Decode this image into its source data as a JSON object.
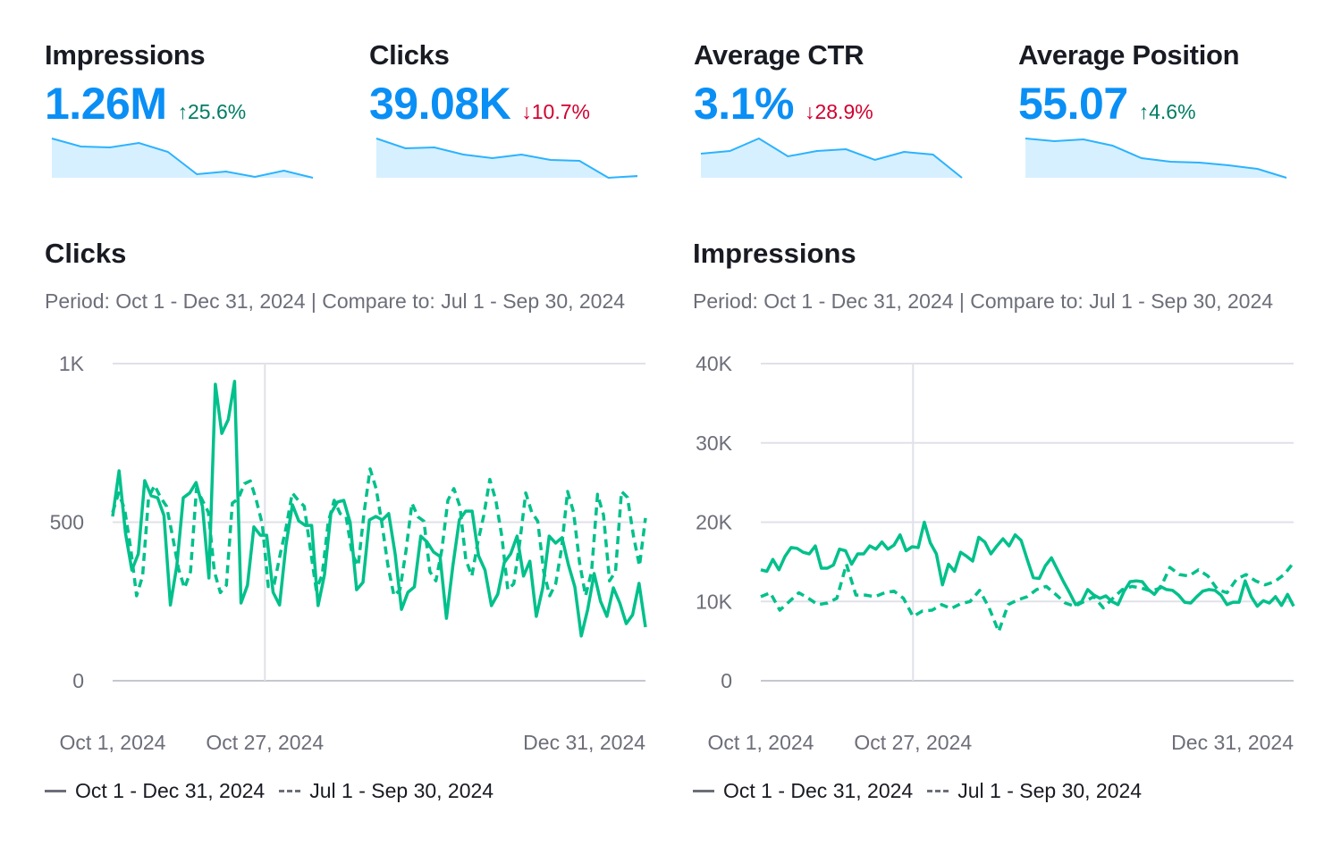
{
  "kpis": [
    {
      "title": "Impressions",
      "value": "1.26M",
      "delta": "25.6%",
      "direction": "up",
      "arrow": "↑",
      "spark": [
        44,
        35,
        34,
        39,
        29,
        4,
        7,
        1,
        8,
        0
      ]
    },
    {
      "title": "Clicks",
      "value": "39.08K",
      "delta": "10.7%",
      "direction": "down",
      "arrow": "↓",
      "spark": [
        44,
        33,
        34,
        26,
        22,
        26,
        20,
        19,
        0,
        2
      ]
    },
    {
      "title": "Average CTR",
      "value": "3.1%",
      "delta": "28.9%",
      "direction": "down",
      "arrow": "↓",
      "spark": [
        27,
        30,
        44,
        24,
        30,
        32,
        20,
        29,
        26,
        0
      ]
    },
    {
      "title": "Average Position",
      "value": "55.07",
      "delta": "4.6%",
      "direction": "up",
      "arrow": "↑",
      "spark": [
        44,
        41,
        43,
        36,
        22,
        18,
        17,
        14,
        10,
        0
      ]
    }
  ],
  "colors": {
    "accent": "#0a8ff5",
    "up": "#007c65",
    "down": "#d1002f",
    "series": "#00c08b",
    "spark_line": "#2bb3ff",
    "spark_fill": "#d7f0ff"
  },
  "chart_data": [
    {
      "type": "line",
      "title": "Clicks",
      "subtitle": "Period: Oct 1 - Dec 31, 2024 | Compare to: Jul 1 - Sep 30, 2024",
      "yticks": [
        "0",
        "500",
        "1K"
      ],
      "ylim": [
        0,
        1000
      ],
      "xticks": [
        "Oct 1, 2024",
        "Oct 27, 2024",
        "Dec 31, 2024"
      ],
      "grid": true,
      "legend": "bottom-left",
      "series": [
        {
          "name": "Oct 1 - Dec 31, 2024",
          "style": "solid",
          "values": [
            518,
            662,
            465,
            349,
            400,
            631,
            583,
            577,
            521,
            239,
            363,
            577,
            592,
            625,
            549,
            324,
            935,
            780,
            823,
            944,
            245,
            301,
            485,
            459,
            459,
            279,
            239,
            428,
            555,
            504,
            490,
            490,
            237,
            335,
            527,
            563,
            569,
            499,
            287,
            310,
            507,
            518,
            507,
            527,
            400,
            225,
            279,
            296,
            456,
            437,
            406,
            392,
            197,
            363,
            507,
            535,
            535,
            394,
            349,
            237,
            273,
            372,
            400,
            456,
            330,
            377,
            203,
            293,
            456,
            434,
            451,
            366,
            296,
            141,
            225,
            338,
            251,
            203,
            293,
            245,
            180,
            208,
            307,
            169
          ]
        },
        {
          "name": "Jul 1 - Sep 30, 2024",
          "style": "dashed",
          "values": [
            531,
            592,
            541,
            419,
            268,
            330,
            578,
            616,
            578,
            550,
            456,
            353,
            292,
            344,
            606,
            569,
            531,
            344,
            278,
            301,
            560,
            574,
            621,
            630,
            569,
            494,
            297,
            306,
            400,
            485,
            592,
            569,
            550,
            419,
            287,
            334,
            499,
            569,
            527,
            517,
            400,
            362,
            531,
            668,
            606,
            494,
            362,
            268,
            287,
            409,
            560,
            517,
            503,
            344,
            315,
            414,
            569,
            606,
            550,
            381,
            330,
            437,
            522,
            635,
            569,
            456,
            287,
            306,
            437,
            592,
            531,
            503,
            344,
            268,
            306,
            419,
            597,
            531,
            372,
            268,
            344,
            588,
            522,
            315,
            344,
            597,
            578,
            456,
            362,
            513
          ]
        }
      ]
    },
    {
      "type": "line",
      "title": "Impressions",
      "subtitle": "Period: Oct 1 - Dec 31, 2024 | Compare to: Jul 1 - Sep 30, 2024",
      "yticks": [
        "0",
        "10K",
        "20K",
        "30K",
        "40K"
      ],
      "ylim": [
        0,
        40000
      ],
      "xticks": [
        "Oct 1, 2024",
        "Oct 27, 2024",
        "Dec 31, 2024"
      ],
      "grid": true,
      "legend": "bottom-left",
      "series": [
        {
          "name": "Oct 1 - Dec 31, 2024",
          "style": "solid",
          "values": [
            14000,
            13800,
            15300,
            14000,
            15700,
            16800,
            16700,
            16200,
            16000,
            17000,
            14200,
            14200,
            14600,
            16600,
            16400,
            14700,
            16000,
            16000,
            17000,
            16600,
            17500,
            16600,
            17100,
            18400,
            16400,
            16900,
            16800,
            20000,
            17400,
            16000,
            12100,
            14700,
            13800,
            16200,
            15700,
            15100,
            18100,
            17500,
            16000,
            17000,
            17900,
            17000,
            18400,
            17700,
            15300,
            13000,
            12900,
            14500,
            15500,
            14000,
            12500,
            11100,
            9600,
            10000,
            11500,
            10800,
            10400,
            10700,
            10000,
            9600,
            11300,
            12500,
            12600,
            12500,
            11500,
            10900,
            11900,
            11500,
            11400,
            10800,
            9900,
            9800,
            10600,
            11300,
            11500,
            11400,
            10800,
            9600,
            9900,
            9900,
            12600,
            10600,
            9400,
            10100,
            9800,
            10600,
            9500,
            10900,
            9400
          ]
        },
        {
          "name": "Jul 1 - Sep 30, 2024",
          "style": "dashed",
          "values": [
            10600,
            11100,
            8900,
            10000,
            11100,
            10400,
            9600,
            9800,
            10400,
            14700,
            10800,
            10800,
            10600,
            11100,
            11300,
            10400,
            8100,
            8800,
            8900,
            9600,
            9100,
            9700,
            10000,
            11400,
            9200,
            6200,
            9600,
            10200,
            10600,
            11500,
            11900,
            10900,
            9800,
            9400,
            10000,
            10600,
            9200,
            10400,
            11500,
            11900,
            11700,
            11300,
            11700,
            14300,
            13400,
            13200,
            14000,
            13200,
            11500,
            11100,
            12800,
            13400,
            12600,
            12100,
            12500,
            13400,
            14900
          ]
        }
      ]
    }
  ]
}
